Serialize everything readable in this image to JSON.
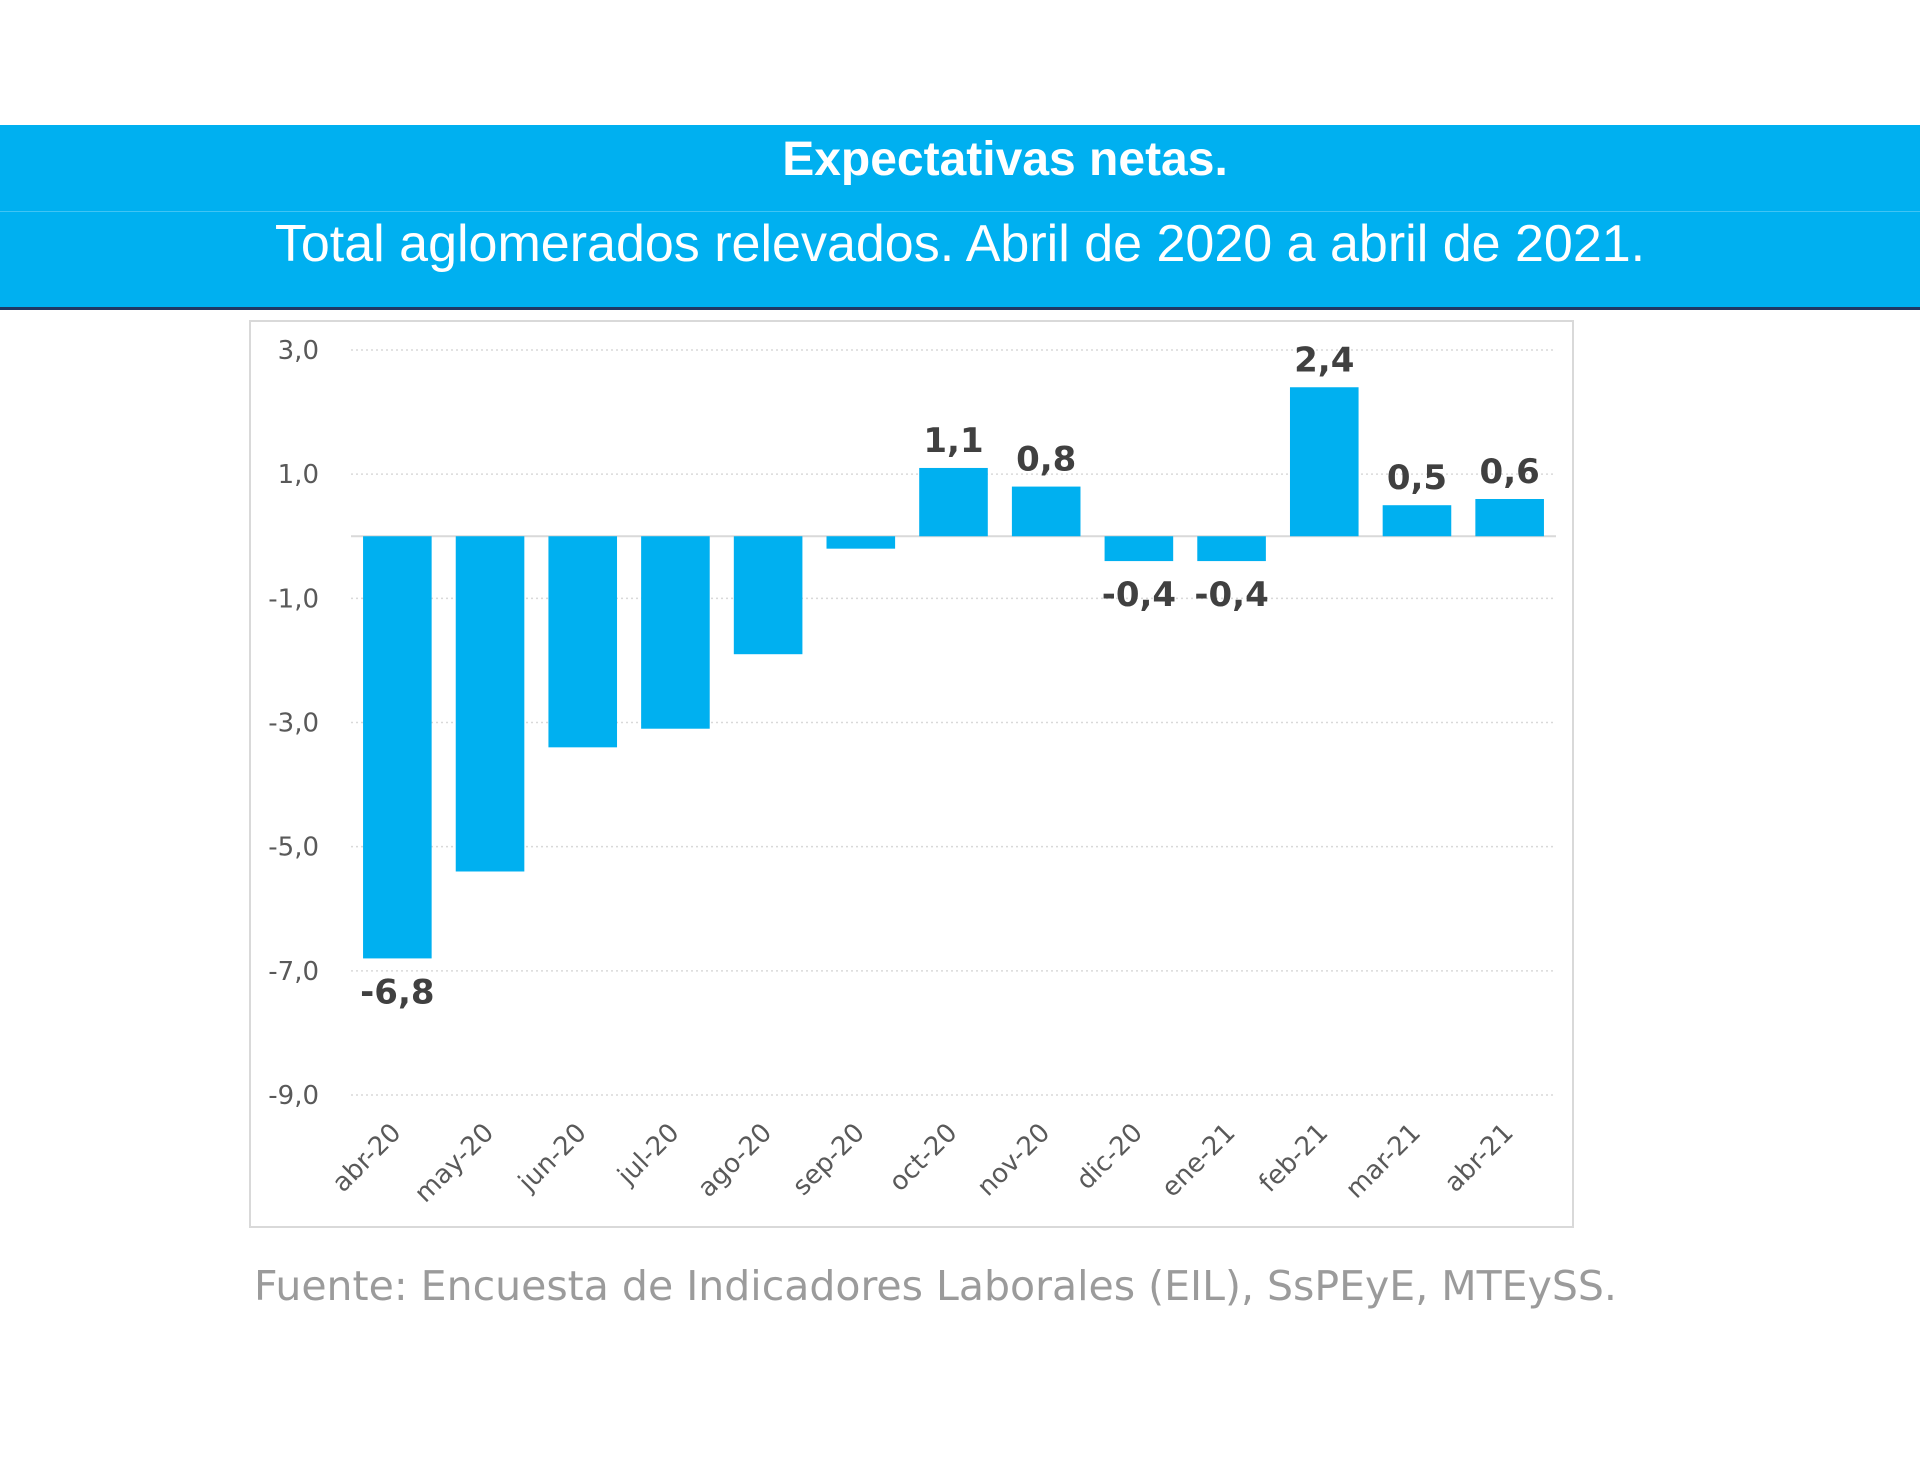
{
  "header": {
    "title": "Expectativas netas.",
    "subtitle": "Total aglomerados relevados. Abril de 2020 a abril de 2021."
  },
  "footer": {
    "source": "Fuente: Encuesta de Indicadores Laborales (EIL), SsPEyE, MTEySS."
  },
  "colors": {
    "banner": "#00b0f0",
    "bar": "#00b0f0",
    "label": "#404040"
  },
  "chart_data": {
    "type": "bar",
    "title": "",
    "xlabel": "",
    "ylabel": "",
    "categories": [
      "abr-20",
      "may-20",
      "jun-20",
      "jul-20",
      "ago-20",
      "sep-20",
      "oct-20",
      "nov-20",
      "dic-20",
      "ene-21",
      "feb-21",
      "mar-21",
      "abr-21"
    ],
    "values": [
      -6.8,
      -5.4,
      -3.4,
      -3.1,
      -1.9,
      -0.2,
      1.1,
      0.8,
      -0.4,
      -0.4,
      2.4,
      0.5,
      0.6
    ],
    "data_labels": [
      "-6,8",
      "",
      "",
      "",
      "",
      "",
      "1,1",
      "0,8",
      "-0,4",
      "-0,4",
      "2,4",
      "0,5",
      "0,6"
    ],
    "y_ticks": [
      "3,0",
      "1,0",
      "-1,0",
      "-3,0",
      "-5,0",
      "-7,0",
      "-9,0"
    ],
    "y_tick_values": [
      3,
      1,
      -1,
      -3,
      -5,
      -7,
      -9
    ],
    "ylim": [
      -9,
      3
    ],
    "grid": true,
    "legend": "none"
  }
}
